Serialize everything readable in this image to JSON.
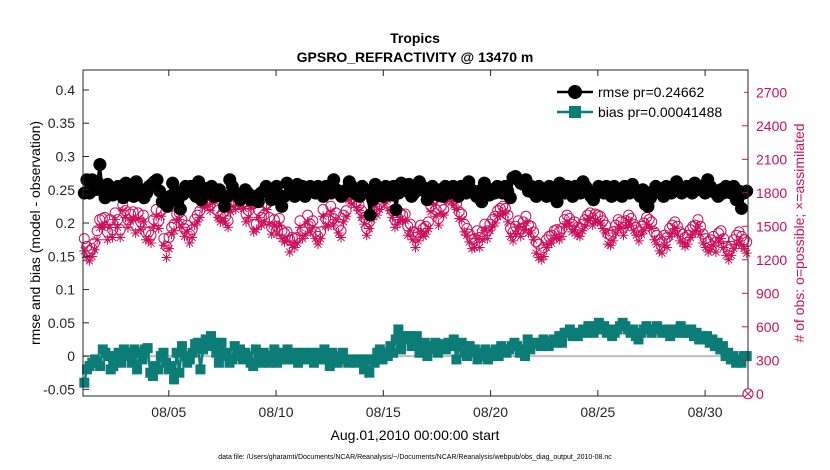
{
  "chart_data": {
    "type": "line",
    "title": "Tropics",
    "subtitle": "GPSRO_REFRACTIVITY @ 13470 m",
    "xlabel": "Aug.01,2010 00:00:00 start",
    "ylabel": "rmse and bias (model - observation)",
    "ylabel_right": "# of obs: o=possible; ×=assimilated",
    "footnote": "data file: /Users/gharamti/Documents/NCAR/Reanalysis/~/Documents/NCAR/Reanalysis/webpub/obs_diag_output_2010-08.nc",
    "x_start_day": 1,
    "x_end_day": 32,
    "xlim": [
      1.0,
      32.0
    ],
    "ylim": [
      -0.06,
      0.43
    ],
    "ylim_right": [
      -20,
      2900
    ],
    "yticks": [
      "-0.05",
      "0",
      "0.05",
      "0.1",
      "0.15",
      "0.2",
      "0.25",
      "0.3",
      "0.35",
      "0.4"
    ],
    "yticks_right": [
      "0",
      "300",
      "600",
      "900",
      "1200",
      "1500",
      "1800",
      "2100",
      "2400",
      "2700"
    ],
    "xticks": [
      {
        "day": 5,
        "label": "08/05"
      },
      {
        "day": 10,
        "label": "08/10"
      },
      {
        "day": 15,
        "label": "08/15"
      },
      {
        "day": 20,
        "label": "08/20"
      },
      {
        "day": 25,
        "label": "08/25"
      },
      {
        "day": 30,
        "label": "08/30"
      }
    ],
    "legend": {
      "position": "top-right"
    },
    "series": [
      {
        "name": "rmse pr=0.24662",
        "color": "#000000",
        "marker": "circle-filled",
        "values": [
          0.245,
          0.265,
          0.245,
          0.265,
          0.25,
          0.262,
          0.288,
          0.248,
          0.238,
          0.258,
          0.252,
          0.242,
          0.248,
          0.255,
          0.245,
          0.238,
          0.26,
          0.245,
          0.255,
          0.24,
          0.262,
          0.252,
          0.245,
          0.238,
          0.245,
          0.255,
          0.258,
          0.262,
          0.265,
          0.248,
          0.232,
          0.23,
          0.225,
          0.24,
          0.26,
          0.248,
          0.233,
          0.221,
          0.243,
          0.255,
          0.248,
          0.255,
          0.245,
          0.24,
          0.262,
          0.235,
          0.245,
          0.252,
          0.245,
          0.255,
          0.24,
          0.245,
          0.25,
          0.24,
          0.225,
          0.24,
          0.265,
          0.255,
          0.245,
          0.242,
          0.235,
          0.24,
          0.25,
          0.245,
          0.235,
          0.24,
          0.24,
          0.232,
          0.245,
          0.248,
          0.255,
          0.245,
          0.235,
          0.24,
          0.255,
          0.242,
          0.225,
          0.24,
          0.26,
          0.245,
          0.255,
          0.24,
          0.258,
          0.25,
          0.255,
          0.24,
          0.25,
          0.255,
          0.25,
          0.245,
          0.255,
          0.248,
          0.24,
          0.255,
          0.25,
          0.245,
          0.265,
          0.25,
          0.248,
          0.24,
          0.245,
          0.25,
          0.262,
          0.255,
          0.245,
          0.25,
          0.24,
          0.255,
          0.25,
          0.245,
          0.212,
          0.235,
          0.258,
          0.245,
          0.25,
          0.24,
          0.255,
          0.25,
          0.242,
          0.255,
          0.22,
          0.245,
          0.26,
          0.255,
          0.248,
          0.258,
          0.24,
          0.245,
          0.25,
          0.262,
          0.255,
          0.248,
          0.235,
          0.245,
          0.255,
          0.245,
          0.242,
          0.25,
          0.24,
          0.255,
          0.25,
          0.245,
          0.255,
          0.248,
          0.24,
          0.255,
          0.25,
          0.245,
          0.262,
          0.25,
          0.245,
          0.24,
          0.248,
          0.232,
          0.26,
          0.248,
          0.242,
          0.25,
          0.245,
          0.255,
          0.25,
          0.245,
          0.255,
          0.248,
          0.238,
          0.268,
          0.27,
          0.265,
          0.26,
          0.258,
          0.265,
          0.248,
          0.255,
          0.245,
          0.24,
          0.255,
          0.25,
          0.245,
          0.24,
          0.255,
          0.25,
          0.245,
          0.232,
          0.26,
          0.25,
          0.245,
          0.255,
          0.248,
          0.24,
          0.255,
          0.25,
          0.245,
          0.262,
          0.255,
          0.248,
          0.24,
          0.235,
          0.245,
          0.255,
          0.25,
          0.245,
          0.255,
          0.248,
          0.24,
          0.255,
          0.25,
          0.245,
          0.24,
          0.255,
          0.25,
          0.245,
          0.258,
          0.25,
          0.245,
          0.24,
          0.25,
          0.228,
          0.225,
          0.238,
          0.248,
          0.255,
          0.25,
          0.245,
          0.24,
          0.255,
          0.25,
          0.245,
          0.25,
          0.262,
          0.255,
          0.245,
          0.248,
          0.255,
          0.25,
          0.245,
          0.26,
          0.25,
          0.255,
          0.25,
          0.245,
          0.265,
          0.255,
          0.25,
          0.245,
          0.24,
          0.25,
          0.245,
          0.255,
          0.248,
          0.245,
          0.255,
          0.235,
          0.248,
          0.222,
          0.245,
          0.248
        ]
      },
      {
        "name": "bias pr=0.00041488",
        "color": "#0c7c76",
        "marker": "square-filled",
        "values": [
          -0.04,
          -0.02,
          -0.015,
          -0.01,
          -0.005,
          -0.01,
          -0.015,
          0.01,
          0.005,
          0.0,
          -0.02,
          -0.015,
          0.0,
          0.005,
          -0.01,
          0.01,
          0.005,
          0.0,
          -0.01,
          0.01,
          -0.02,
          0.005,
          -0.005,
          0.01,
          0.012,
          -0.025,
          -0.03,
          -0.015,
          -0.02,
          0.0,
          0.005,
          -0.01,
          -0.02,
          -0.015,
          -0.035,
          0.005,
          -0.025,
          0.015,
          0.0,
          -0.01,
          -0.005,
          0.005,
          0.018,
          0.02,
          -0.02,
          0.01,
          0.025,
          0.015,
          0.03,
          0.02,
          0.005,
          -0.01,
          0.02,
          0.0,
          0.005,
          -0.01,
          -0.005,
          0.015,
          0.0,
          0.01,
          -0.005,
          0.005,
          0.0,
          -0.01,
          -0.015,
          0.01,
          -0.005,
          -0.01,
          0.005,
          0.0,
          -0.01,
          -0.005,
          0.01,
          -0.01,
          0.005,
          0.0,
          -0.005,
          0.01,
          -0.005,
          0.0,
          0.005,
          -0.01,
          0.0,
          0.005,
          -0.005,
          0.0,
          0.005,
          -0.01,
          0.0,
          0.005,
          -0.005,
          0.01,
          -0.005,
          -0.015,
          0.005,
          -0.005,
          -0.01,
          0.0,
          0.005,
          -0.005,
          -0.01,
          -0.005,
          -0.008,
          -0.01,
          -0.005,
          -0.005,
          -0.02,
          -0.005,
          -0.025,
          -0.005,
          -0.01,
          0.005,
          0.01,
          -0.005,
          0.005,
          0.0,
          0.015,
          0.005,
          0.025,
          0.04,
          0.01,
          0.025,
          0.03,
          0.03,
          0.015,
          0.02,
          0.03,
          0.005,
          0.015,
          0.02,
          0.0,
          0.01,
          0.015,
          0.02,
          0.005,
          0.018,
          0.015,
          0.01,
          0.02,
          0.015,
          0.025,
          -0.005,
          0.015,
          0.02,
          0.005,
          0.0,
          0.015,
          0.005,
          0.01,
          -0.005,
          0.0,
          0.005,
          0.01,
          -0.005,
          0.0,
          0.005,
          0.01,
          0.0,
          0.015,
          0.01,
          0.005,
          0.01,
          0.015,
          0.02,
          0.015,
          0.005,
          0.01,
          0.0,
          0.025,
          0.01,
          0.02,
          0.018,
          0.02,
          0.015,
          0.025,
          0.02,
          0.015,
          0.022,
          0.025,
          0.02,
          0.03,
          0.02,
          0.035,
          0.035,
          0.04,
          0.03,
          0.035,
          0.03,
          0.035,
          0.04,
          0.035,
          0.045,
          0.04,
          0.035,
          0.045,
          0.05,
          0.04,
          0.045,
          0.035,
          0.04,
          0.03,
          0.035,
          0.04,
          0.045,
          0.05,
          0.045,
          0.04,
          0.035,
          0.04,
          0.03,
          0.025,
          0.035,
          0.04,
          0.045,
          0.04,
          0.035,
          0.04,
          0.045,
          0.04,
          0.035,
          0.04,
          0.035,
          0.03,
          0.04,
          0.035,
          0.04,
          0.045,
          0.035,
          0.04,
          0.035,
          0.04,
          0.03,
          0.035,
          0.025,
          0.03,
          0.025,
          0.03,
          0.02,
          0.025,
          0.015,
          0.02,
          0.01,
          0.015,
          0.0,
          0.005,
          -0.005,
          0.0,
          -0.01,
          -0.005,
          -0.01,
          0.0,
          0.0
        ]
      },
      {
        "name": "possible obs",
        "color": "#cc0f5a",
        "marker": "circle-open",
        "axis": "right",
        "values": [
          1390,
          1320,
          1280,
          1300,
          1350,
          1460,
          1560,
          1570,
          1580,
          1450,
          1560,
          1470,
          1620,
          1560,
          1470,
          1690,
          1640,
          1560,
          1610,
          1630,
          1510,
          1620,
          1540,
          1600,
          1450,
          1450,
          1420,
          1560,
          1650,
          1550,
          1640,
          1390,
          1320,
          1400,
          1490,
          1520,
          1610,
          1620,
          1560,
          1480,
          1510,
          1430,
          1470,
          1560,
          1600,
          1640,
          1720,
          1720,
          1730,
          1690,
          1760,
          1770,
          1640,
          1590,
          1620,
          1590,
          1550,
          1690,
          1720,
          1700,
          1780,
          1730,
          1710,
          1610,
          1640,
          1710,
          1520,
          1520,
          1640,
          1580,
          1600,
          1700,
          1580,
          1490,
          1560,
          1500,
          1570,
          1460,
          1440,
          1450,
          1380,
          1400,
          1390,
          1400,
          1550,
          1460,
          1480,
          1600,
          1520,
          1550,
          1450,
          1410,
          1450,
          1650,
          1570,
          1560,
          1680,
          1570,
          1620,
          1500,
          1460,
          1600,
          1640,
          1780,
          1750,
          1800,
          1720,
          1690,
          1640,
          1580,
          1480,
          1540,
          1620,
          1730,
          1660,
          1700,
          1800,
          1750,
          1790,
          1690,
          1640,
          1560,
          1580,
          1620,
          1600,
          1610,
          1500,
          1520,
          1450,
          1400,
          1440,
          1510,
          1480,
          1500,
          1540,
          1680,
          1740,
          1650,
          1570,
          1680,
          1650,
          1770,
          1810,
          1760,
          1740,
          1700,
          1630,
          1610,
          1520,
          1480,
          1430,
          1380,
          1390,
          1460,
          1400,
          1450,
          1520,
          1460,
          1520,
          1560,
          1590,
          1640,
          1660,
          1680,
          1660,
          1600,
          1480,
          1450,
          1500,
          1550,
          1480,
          1540,
          1590,
          1510,
          1500,
          1450,
          1360,
          1340,
          1290,
          1310,
          1380,
          1410,
          1420,
          1460,
          1470,
          1450,
          1480,
          1560,
          1600,
          1570,
          1520,
          1540,
          1490,
          1480,
          1520,
          1560,
          1600,
          1620,
          1570,
          1610,
          1600,
          1590,
          1550,
          1510,
          1430,
          1420,
          1450,
          1510,
          1560,
          1540,
          1490,
          1550,
          1600,
          1570,
          1520,
          1490,
          1450,
          1500,
          1530,
          1580,
          1560,
          1540,
          1450,
          1420,
          1380,
          1360,
          1420,
          1400,
          1480,
          1510,
          1540,
          1500,
          1450,
          1430,
          1400,
          1420,
          1470,
          1500,
          1510,
          1560,
          1500,
          1430,
          1390,
          1360,
          1380,
          1410,
          1360,
          1440,
          1460,
          1390,
          1320,
          1290,
          1320,
          1380,
          1420,
          1450,
          1410,
          1380,
          1360
        ]
      },
      {
        "name": "assimilated obs",
        "color": "#cc0f5a",
        "marker": "asterisk",
        "axis": "right",
        "values": [
          1280,
          1220,
          1190,
          1230,
          1290,
          1380,
          1490,
          1490,
          1510,
          1380,
          1490,
          1400,
          1560,
          1490,
          1400,
          1640,
          1580,
          1490,
          1550,
          1560,
          1440,
          1570,
          1470,
          1540,
          1380,
          1380,
          1350,
          1500,
          1590,
          1480,
          1590,
          1330,
          1220,
          1300,
          1430,
          1460,
          1550,
          1560,
          1490,
          1410,
          1450,
          1350,
          1400,
          1510,
          1540,
          1580,
          1670,
          1670,
          1680,
          1640,
          1710,
          1720,
          1580,
          1540,
          1570,
          1530,
          1490,
          1630,
          1680,
          1650,
          1740,
          1680,
          1660,
          1540,
          1580,
          1660,
          1450,
          1470,
          1580,
          1510,
          1540,
          1650,
          1520,
          1430,
          1500,
          1430,
          1510,
          1390,
          1360,
          1370,
          1270,
          1330,
          1310,
          1350,
          1490,
          1390,
          1420,
          1540,
          1450,
          1490,
          1390,
          1340,
          1390,
          1590,
          1500,
          1500,
          1630,
          1510,
          1560,
          1440,
          1400,
          1540,
          1590,
          1740,
          1700,
          1760,
          1670,
          1640,
          1580,
          1520,
          1420,
          1480,
          1560,
          1680,
          1600,
          1650,
          1760,
          1700,
          1740,
          1640,
          1580,
          1490,
          1520,
          1560,
          1550,
          1550,
          1420,
          1460,
          1380,
          1310,
          1370,
          1450,
          1410,
          1430,
          1480,
          1630,
          1690,
          1590,
          1510,
          1620,
          1600,
          1720,
          1760,
          1720,
          1690,
          1650,
          1570,
          1560,
          1450,
          1420,
          1360,
          1300,
          1310,
          1390,
          1310,
          1380,
          1460,
          1390,
          1460,
          1500,
          1530,
          1590,
          1600,
          1630,
          1610,
          1540,
          1410,
          1370,
          1430,
          1490,
          1410,
          1470,
          1530,
          1440,
          1440,
          1380,
          1260,
          1220,
          1200,
          1230,
          1310,
          1340,
          1350,
          1390,
          1400,
          1380,
          1410,
          1500,
          1540,
          1510,
          1450,
          1470,
          1420,
          1410,
          1460,
          1500,
          1550,
          1570,
          1510,
          1550,
          1540,
          1530,
          1480,
          1440,
          1340,
          1330,
          1370,
          1440,
          1500,
          1480,
          1420,
          1490,
          1550,
          1510,
          1460,
          1420,
          1370,
          1430,
          1460,
          1520,
          1500,
          1480,
          1380,
          1340,
          1280,
          1260,
          1330,
          1310,
          1410,
          1440,
          1480,
          1430,
          1370,
          1350,
          1320,
          1340,
          1400,
          1430,
          1450,
          1500,
          1430,
          1350,
          1310,
          1270,
          1290,
          1330,
          1270,
          1360,
          1390,
          1310,
          1240,
          1200,
          1240,
          1300,
          1340,
          1370,
          1330,
          1300,
          1260
        ]
      }
    ],
    "reference_line": {
      "value": 0,
      "color": "#bdbdbd"
    },
    "end_marker": {
      "label": "end",
      "value_right": 0
    }
  },
  "colors": {
    "rmse": "#000000",
    "bias": "#0c7c76",
    "obs": "#cc0f5a",
    "zero_line": "#bdbdbd"
  }
}
